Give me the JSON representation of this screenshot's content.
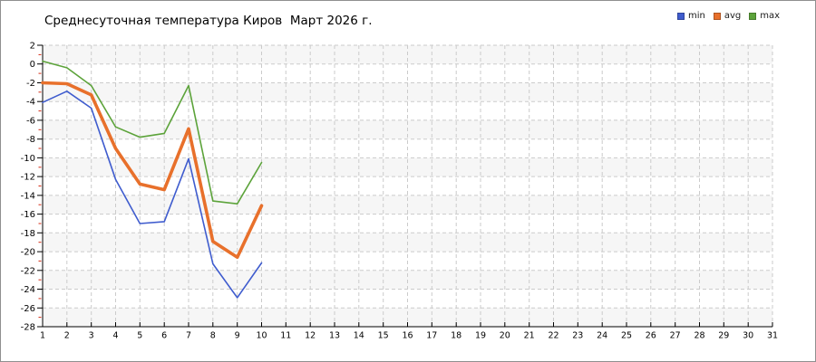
{
  "page": {
    "background": "#ffffff",
    "border_color": "#8f8f8f"
  },
  "chart_data": {
    "type": "line",
    "title": "Среднесуточная температура Киров  Март 2026 г.",
    "x": [
      1,
      2,
      3,
      4,
      5,
      6,
      7,
      8,
      9,
      10
    ],
    "series": [
      {
        "name": "min",
        "color": "#3f5cce",
        "line_width": 1.6,
        "values": [
          -4.1,
          -2.9,
          -4.7,
          -12.3,
          -17.0,
          -16.8,
          -10.1,
          -21.3,
          -24.9,
          -21.2
        ]
      },
      {
        "name": "avg",
        "color": "#e8702b",
        "line_width": 3.6,
        "values": [
          -2.0,
          -2.1,
          -3.3,
          -9.0,
          -12.8,
          -13.4,
          -6.9,
          -18.9,
          -20.6,
          -15.1
        ]
      },
      {
        "name": "max",
        "color": "#5ca33a",
        "line_width": 1.6,
        "values": [
          0.3,
          -0.4,
          -2.3,
          -6.7,
          -7.8,
          -7.4,
          -2.3,
          -14.6,
          -14.9,
          -10.5
        ]
      }
    ],
    "x_axis": {
      "min": 1,
      "max": 31,
      "tick_labels": [
        "1",
        "2",
        "3",
        "4",
        "5",
        "6",
        "7",
        "8",
        "9",
        "10",
        "11",
        "12",
        "13",
        "14",
        "15",
        "16",
        "17",
        "18",
        "19",
        "20",
        "21",
        "22",
        "23",
        "24",
        "25",
        "26",
        "27",
        "28",
        "29",
        "30",
        "31"
      ]
    },
    "y_axis": {
      "min": -28,
      "max": 2,
      "major_step": 2,
      "minor_step": 1,
      "tick_labels": [
        "2",
        "0",
        "-2",
        "-4",
        "-6",
        "-8",
        "-10",
        "-12",
        "-14",
        "-16",
        "-18",
        "-20",
        "-22",
        "-24",
        "-26",
        "-28"
      ]
    },
    "grid": {
      "on": true,
      "line_color": "#cbcbcb",
      "band_color": "#f6f6f6",
      "axis_color": "#000000",
      "minor_tick_color": "#d42a12"
    },
    "legend_position": "top-right"
  }
}
